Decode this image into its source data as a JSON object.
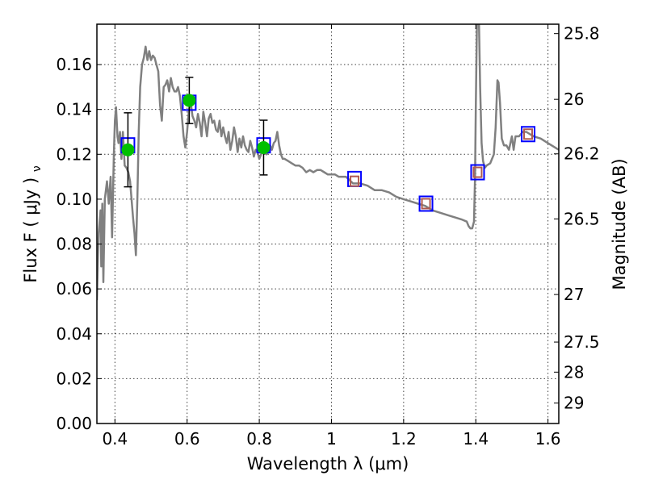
{
  "chart_data": {
    "type": "line",
    "xlabel": "Wavelength  λ (μm)",
    "ylabel": "Flux  F  ( μJy )",
    "ylabel_sub": "ν",
    "y2label": "Magnitude (AB)",
    "xlim": [
      0.35,
      1.63
    ],
    "ylim": [
      0.0,
      0.178
    ],
    "x_ticks": [
      0.4,
      0.6,
      0.8,
      1.0,
      1.2,
      1.4,
      1.6
    ],
    "x_tick_labels": [
      "0.4",
      "0.6",
      "0.8",
      "1",
      "1.2",
      "1.4",
      "1.6"
    ],
    "y_ticks": [
      0.0,
      0.02,
      0.04,
      0.06,
      0.08,
      0.1,
      0.12,
      0.14,
      0.16
    ],
    "y_tick_labels": [
      "0.00",
      "0.02",
      "0.04",
      "0.06",
      "0.08",
      "0.10",
      "0.12",
      "0.14",
      "0.16"
    ],
    "mag_ticks": [
      {
        "label": "25.8",
        "flux": 0.1738
      },
      {
        "label": "26",
        "flux": 0.1445
      },
      {
        "label": "26.2",
        "flux": 0.1202
      },
      {
        "label": "26.5",
        "flux": 0.0912
      },
      {
        "label": "27",
        "flux": 0.0575
      },
      {
        "label": "27.5",
        "flux": 0.0363
      },
      {
        "label": "28",
        "flux": 0.0229
      },
      {
        "label": "29",
        "flux": 0.0091
      }
    ],
    "grid": true,
    "series": [
      {
        "kind": "line",
        "color": "#808080",
        "points": [
          [
            0.35,
            0.055
          ],
          [
            0.355,
            0.085
          ],
          [
            0.36,
            0.095
          ],
          [
            0.362,
            0.07
          ],
          [
            0.365,
            0.098
          ],
          [
            0.368,
            0.063
          ],
          [
            0.372,
            0.1
          ],
          [
            0.378,
            0.108
          ],
          [
            0.383,
            0.098
          ],
          [
            0.388,
            0.11
          ],
          [
            0.392,
            0.083
          ],
          [
            0.397,
            0.12
          ],
          [
            0.4,
            0.135
          ],
          [
            0.403,
            0.141
          ],
          [
            0.407,
            0.128
          ],
          [
            0.41,
            0.125
          ],
          [
            0.414,
            0.13
          ],
          [
            0.418,
            0.118
          ],
          [
            0.422,
            0.13
          ],
          [
            0.427,
            0.115
          ],
          [
            0.432,
            0.114
          ],
          [
            0.437,
            0.112
          ],
          [
            0.442,
            0.108
          ],
          [
            0.446,
            0.1
          ],
          [
            0.45,
            0.092
          ],
          [
            0.454,
            0.085
          ],
          [
            0.458,
            0.075
          ],
          [
            0.462,
            0.1
          ],
          [
            0.466,
            0.13
          ],
          [
            0.47,
            0.15
          ],
          [
            0.475,
            0.16
          ],
          [
            0.48,
            0.163
          ],
          [
            0.485,
            0.168
          ],
          [
            0.49,
            0.162
          ],
          [
            0.495,
            0.166
          ],
          [
            0.5,
            0.162
          ],
          [
            0.505,
            0.164
          ],
          [
            0.51,
            0.163
          ],
          [
            0.515,
            0.16
          ],
          [
            0.52,
            0.157
          ],
          [
            0.525,
            0.142
          ],
          [
            0.53,
            0.135
          ],
          [
            0.535,
            0.15
          ],
          [
            0.54,
            0.151
          ],
          [
            0.545,
            0.153
          ],
          [
            0.55,
            0.148
          ],
          [
            0.555,
            0.154
          ],
          [
            0.56,
            0.15
          ],
          [
            0.565,
            0.148
          ],
          [
            0.57,
            0.148
          ],
          [
            0.575,
            0.15
          ],
          [
            0.58,
            0.146
          ],
          [
            0.585,
            0.138
          ],
          [
            0.59,
            0.128
          ],
          [
            0.595,
            0.123
          ],
          [
            0.6,
            0.13
          ],
          [
            0.605,
            0.14
          ],
          [
            0.61,
            0.143
          ],
          [
            0.615,
            0.137
          ],
          [
            0.62,
            0.135
          ],
          [
            0.625,
            0.132
          ],
          [
            0.63,
            0.138
          ],
          [
            0.635,
            0.134
          ],
          [
            0.64,
            0.128
          ],
          [
            0.645,
            0.139
          ],
          [
            0.65,
            0.134
          ],
          [
            0.655,
            0.128
          ],
          [
            0.66,
            0.136
          ],
          [
            0.665,
            0.138
          ],
          [
            0.67,
            0.134
          ],
          [
            0.675,
            0.135
          ],
          [
            0.68,
            0.131
          ],
          [
            0.685,
            0.13
          ],
          [
            0.69,
            0.135
          ],
          [
            0.695,
            0.128
          ],
          [
            0.7,
            0.132
          ],
          [
            0.705,
            0.128
          ],
          [
            0.71,
            0.125
          ],
          [
            0.715,
            0.13
          ],
          [
            0.72,
            0.122
          ],
          [
            0.725,
            0.126
          ],
          [
            0.73,
            0.132
          ],
          [
            0.735,
            0.128
          ],
          [
            0.74,
            0.121
          ],
          [
            0.745,
            0.127
          ],
          [
            0.75,
            0.123
          ],
          [
            0.755,
            0.128
          ],
          [
            0.76,
            0.124
          ],
          [
            0.765,
            0.122
          ],
          [
            0.77,
            0.121
          ],
          [
            0.775,
            0.126
          ],
          [
            0.78,
            0.123
          ],
          [
            0.785,
            0.119
          ],
          [
            0.79,
            0.122
          ],
          [
            0.795,
            0.121
          ],
          [
            0.8,
            0.118
          ],
          [
            0.805,
            0.12
          ],
          [
            0.81,
            0.122
          ],
          [
            0.815,
            0.122
          ],
          [
            0.82,
            0.12
          ],
          [
            0.825,
            0.121
          ],
          [
            0.83,
            0.124
          ],
          [
            0.835,
            0.122
          ],
          [
            0.84,
            0.125
          ],
          [
            0.845,
            0.126
          ],
          [
            0.85,
            0.13
          ],
          [
            0.855,
            0.124
          ],
          [
            0.86,
            0.12
          ],
          [
            0.865,
            0.118
          ],
          [
            0.87,
            0.118
          ],
          [
            0.88,
            0.117
          ],
          [
            0.89,
            0.116
          ],
          [
            0.9,
            0.115
          ],
          [
            0.91,
            0.115
          ],
          [
            0.92,
            0.114
          ],
          [
            0.93,
            0.112
          ],
          [
            0.94,
            0.113
          ],
          [
            0.95,
            0.112
          ],
          [
            0.96,
            0.113
          ],
          [
            0.97,
            0.113
          ],
          [
            0.98,
            0.112
          ],
          [
            0.99,
            0.111
          ],
          [
            1.0,
            0.111
          ],
          [
            1.01,
            0.111
          ],
          [
            1.02,
            0.11
          ],
          [
            1.04,
            0.11
          ],
          [
            1.06,
            0.107
          ],
          [
            1.08,
            0.107
          ],
          [
            1.1,
            0.106
          ],
          [
            1.12,
            0.104
          ],
          [
            1.14,
            0.104
          ],
          [
            1.16,
            0.103
          ],
          [
            1.18,
            0.101
          ],
          [
            1.2,
            0.1
          ],
          [
            1.22,
            0.099
          ],
          [
            1.24,
            0.098
          ],
          [
            1.26,
            0.097
          ],
          [
            1.28,
            0.095
          ],
          [
            1.3,
            0.094
          ],
          [
            1.32,
            0.093
          ],
          [
            1.34,
            0.092
          ],
          [
            1.36,
            0.091
          ],
          [
            1.375,
            0.09
          ],
          [
            1.38,
            0.088
          ],
          [
            1.385,
            0.087
          ],
          [
            1.39,
            0.087
          ],
          [
            1.395,
            0.09
          ],
          [
            1.398,
            0.11
          ],
          [
            1.4,
            0.14
          ],
          [
            1.403,
            0.178
          ],
          [
            1.406,
            0.178
          ],
          [
            1.409,
            0.178
          ],
          [
            1.412,
            0.15
          ],
          [
            1.416,
            0.125
          ],
          [
            1.42,
            0.117
          ],
          [
            1.425,
            0.114
          ],
          [
            1.43,
            0.115
          ],
          [
            1.44,
            0.116
          ],
          [
            1.45,
            0.12
          ],
          [
            1.455,
            0.132
          ],
          [
            1.46,
            0.153
          ],
          [
            1.463,
            0.152
          ],
          [
            1.467,
            0.143
          ],
          [
            1.472,
            0.127
          ],
          [
            1.478,
            0.124
          ],
          [
            1.485,
            0.124
          ],
          [
            1.492,
            0.122
          ],
          [
            1.5,
            0.128
          ],
          [
            1.505,
            0.122
          ],
          [
            1.51,
            0.128
          ],
          [
            1.52,
            0.128
          ],
          [
            1.53,
            0.13
          ],
          [
            1.54,
            0.13
          ],
          [
            1.55,
            0.129
          ],
          [
            1.56,
            0.128
          ],
          [
            1.58,
            0.127
          ],
          [
            1.6,
            0.125
          ],
          [
            1.62,
            0.123
          ],
          [
            1.63,
            0.122
          ]
        ]
      },
      {
        "kind": "open-squares",
        "color": "#0000ff",
        "points": [
          [
            0.436,
            0.124
          ],
          [
            0.606,
            0.143
          ],
          [
            0.812,
            0.124
          ],
          [
            1.064,
            0.109
          ],
          [
            1.262,
            0.098
          ],
          [
            1.405,
            0.112
          ],
          [
            1.545,
            0.129
          ]
        ]
      },
      {
        "kind": "brown-squares",
        "color": "#b05a50",
        "points": [
          [
            1.064,
            0.108
          ],
          [
            1.262,
            0.098
          ],
          [
            1.405,
            0.112
          ],
          [
            1.545,
            0.129
          ]
        ]
      },
      {
        "kind": "filled-circles-with-errorbars",
        "color": "#00c000",
        "points": [
          {
            "x": 0.436,
            "y": 0.122,
            "err": 0.0165
          },
          {
            "x": 0.606,
            "y": 0.144,
            "err": 0.0103
          },
          {
            "x": 0.812,
            "y": 0.123,
            "err": 0.0122
          }
        ]
      }
    ]
  }
}
